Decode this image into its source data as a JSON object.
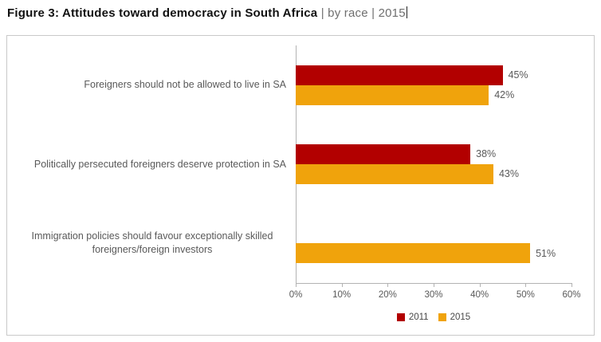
{
  "figure": {
    "title_main": "Figure 3: Attitudes toward democracy in South Africa",
    "title_qualifier": " | by race | 2015"
  },
  "chart_data": {
    "type": "bar",
    "orientation": "horizontal",
    "title": "Figure 3: Attitudes toward democracy in South Africa | by race | 2015",
    "categories": [
      "Foreigners should not be allowed to live in SA",
      "Politically persecuted foreigners deserve protection in SA",
      "Immigration policies should favour exceptionally skilled foreigners/foreign investors"
    ],
    "series": [
      {
        "name": "2011",
        "color": "#B20000",
        "values": [
          45,
          38,
          null
        ]
      },
      {
        "name": "2015",
        "color": "#F0A30C",
        "values": [
          42,
          43,
          51
        ]
      }
    ],
    "value_suffix": "%",
    "xlim": [
      0,
      60
    ],
    "x_ticks": [
      "0%",
      "10%",
      "20%",
      "30%",
      "40%",
      "50%",
      "60%"
    ],
    "grid": false,
    "legend_position": "bottom"
  }
}
